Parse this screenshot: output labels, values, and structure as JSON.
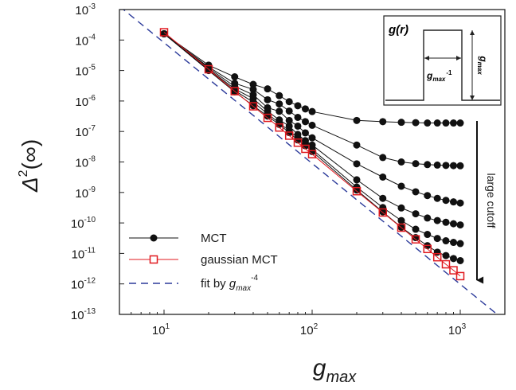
{
  "chart_data": {
    "type": "line",
    "x_scale": "log",
    "y_scale": "log",
    "xlim": [
      5,
      2000
    ],
    "ylim": [
      1e-13,
      0.001
    ],
    "grid": false,
    "legend_position": "bottom-left",
    "xlabel": {
      "base": "g",
      "sub": "max"
    },
    "ylabel": {
      "base": "Δ",
      "sup": "2",
      "suffix": "(∞)"
    },
    "x_ticks": [
      {
        "base": "10",
        "exp": "1",
        "value": 10
      },
      {
        "base": "10",
        "exp": "2",
        "value": 100
      },
      {
        "base": "10",
        "exp": "3",
        "value": 1000
      }
    ],
    "y_ticks": [
      {
        "base": "10",
        "exp": "-3",
        "value": 0.001
      },
      {
        "base": "10",
        "exp": "-4",
        "value": 0.0001
      },
      {
        "base": "10",
        "exp": "-5",
        "value": 1e-05
      },
      {
        "base": "10",
        "exp": "-6",
        "value": 1e-06
      },
      {
        "base": "10",
        "exp": "-7",
        "value": 1e-07
      },
      {
        "base": "10",
        "exp": "-8",
        "value": 1e-08
      },
      {
        "base": "10",
        "exp": "-9",
        "value": 1e-09
      },
      {
        "base": "10",
        "exp": "-10",
        "value": 1e-10
      },
      {
        "base": "10",
        "exp": "-11",
        "value": 1e-11
      },
      {
        "base": "10",
        "exp": "-12",
        "value": 1e-12
      },
      {
        "base": "10",
        "exp": "-13",
        "value": 1e-13
      }
    ],
    "legend": [
      {
        "label": "MCT",
        "style": "black-line-filled-circle"
      },
      {
        "label": "gaussian MCT",
        "style": "red-line-open-square"
      },
      {
        "label": "fit by ",
        "label_var": "g",
        "label_sub": "max",
        "label_sup": "-4",
        "style": "blue-dashed"
      }
    ],
    "annotation": {
      "text": "large cutoff",
      "direction": "down"
    },
    "inset": {
      "title": "g(r)",
      "width_label": {
        "base": "g",
        "sub": "max",
        "sup": "-1"
      },
      "height_label": {
        "base": "g",
        "sub": "max"
      }
    },
    "fit_line": {
      "x": [
        5,
        2000
      ],
      "y": [
        0.00128,
        6.25e-14
      ],
      "color": "#2b3a9a"
    },
    "colors": {
      "mct": "#111111",
      "gaussian": "#e0191f",
      "fit": "#2b3a9a"
    },
    "series": [
      {
        "group": "MCT",
        "x": [
          10,
          20,
          30,
          40,
          50,
          60,
          70,
          80,
          90,
          100,
          200,
          300,
          400,
          500,
          600,
          700,
          800,
          900,
          1000
        ],
        "y": [
          0.00016,
          1.5e-05,
          6.2e-06,
          3.5e-06,
          2.5e-06,
          1.5e-06,
          9.5e-07,
          7e-07,
          5.5e-07,
          4.5e-07,
          2.3e-07,
          2.1e-07,
          2e-07,
          1.95e-07,
          1.9e-07,
          1.9e-07,
          1.9e-07,
          1.9e-07,
          1.9e-07
        ]
      },
      {
        "group": "MCT",
        "x": [
          10,
          20,
          30,
          40,
          50,
          60,
          70,
          80,
          90,
          100,
          200,
          300,
          400,
          500,
          600,
          700,
          800,
          900,
          1000
        ],
        "y": [
          0.00016,
          1.3e-05,
          3.8e-06,
          2.4e-06,
          1.1e-06,
          8e-07,
          4.7e-07,
          2.9e-07,
          2.1e-07,
          1.6e-07,
          3.6e-08,
          1.4e-08,
          1e-08,
          8.8e-09,
          8.2e-09,
          7.9e-09,
          7.7e-09,
          7.6e-09,
          7.5e-09
        ]
      },
      {
        "group": "MCT",
        "x": [
          10,
          20,
          30,
          40,
          50,
          60,
          70,
          80,
          90,
          100,
          200,
          300,
          400,
          500,
          600,
          700,
          800,
          900,
          1000
        ],
        "y": [
          0.00016,
          1.2e-05,
          3e-06,
          1.6e-06,
          6e-07,
          4.6e-07,
          2.3e-07,
          1.5e-07,
          9e-08,
          6.2e-08,
          8.7e-09,
          3.2e-09,
          1.6e-09,
          1.05e-09,
          7.9e-10,
          6.4e-10,
          5.5e-10,
          4.9e-10,
          4.5e-10
        ]
      },
      {
        "group": "MCT",
        "x": [
          10,
          20,
          30,
          40,
          50,
          60,
          70,
          80,
          90,
          100,
          200,
          300,
          400,
          500,
          600,
          700,
          800,
          900,
          1000
        ],
        "y": [
          0.00016,
          1.1e-05,
          2.5e-06,
          1.2e-06,
          4.6e-07,
          2.4e-07,
          1.5e-07,
          8e-08,
          5e-08,
          3.6e-08,
          2.6e-09,
          6.4e-10,
          3.1e-10,
          2e-10,
          1.45e-10,
          1.2e-10,
          1.05e-10,
          9.4e-11,
          8.6e-11
        ]
      },
      {
        "group": "MCT",
        "x": [
          10,
          20,
          30,
          40,
          50,
          60,
          70,
          80,
          90,
          100,
          200,
          300,
          400,
          500,
          600,
          700,
          800,
          900,
          1000
        ],
        "y": [
          0.00016,
          1.05e-05,
          2.2e-06,
          9.2e-07,
          3.8e-07,
          1.9e-07,
          1.05e-07,
          6.2e-08,
          4e-08,
          2.6e-08,
          1.5e-09,
          3.2e-10,
          1.2e-10,
          6.2e-11,
          4.2e-11,
          3.1e-11,
          2.6e-11,
          2.3e-11,
          2.1e-11
        ]
      },
      {
        "group": "MCT",
        "x": [
          10,
          20,
          30,
          40,
          50,
          60,
          70,
          80,
          90,
          100,
          200,
          300,
          400,
          500,
          600,
          700,
          800,
          900,
          1000
        ],
        "y": [
          0.00016,
          1e-05,
          2e-06,
          7e-07,
          3.2e-07,
          1.7e-07,
          9.2e-08,
          5.3e-08,
          3.4e-08,
          2.2e-08,
          1.2e-09,
          2.3e-10,
          7.2e-11,
          3.3e-11,
          1.8e-11,
          1.1e-11,
          8.5e-12,
          6.8e-12,
          5.8e-12
        ]
      },
      {
        "group": "gaussian",
        "x": [
          10,
          20,
          30,
          40,
          50,
          60,
          70,
          80,
          90,
          100,
          200,
          300,
          400,
          500,
          600,
          700,
          800,
          900,
          1000
        ],
        "y": [
          0.00018,
          1.1e-05,
          2.1e-06,
          6.7e-07,
          2.8e-07,
          1.35e-07,
          7.3e-08,
          4.3e-08,
          2.7e-08,
          1.8e-08,
          1.1e-09,
          2.2e-10,
          7e-11,
          2.9e-11,
          1.4e-11,
          7.5e-12,
          4.4e-12,
          2.8e-12,
          1.8e-12
        ]
      }
    ]
  }
}
